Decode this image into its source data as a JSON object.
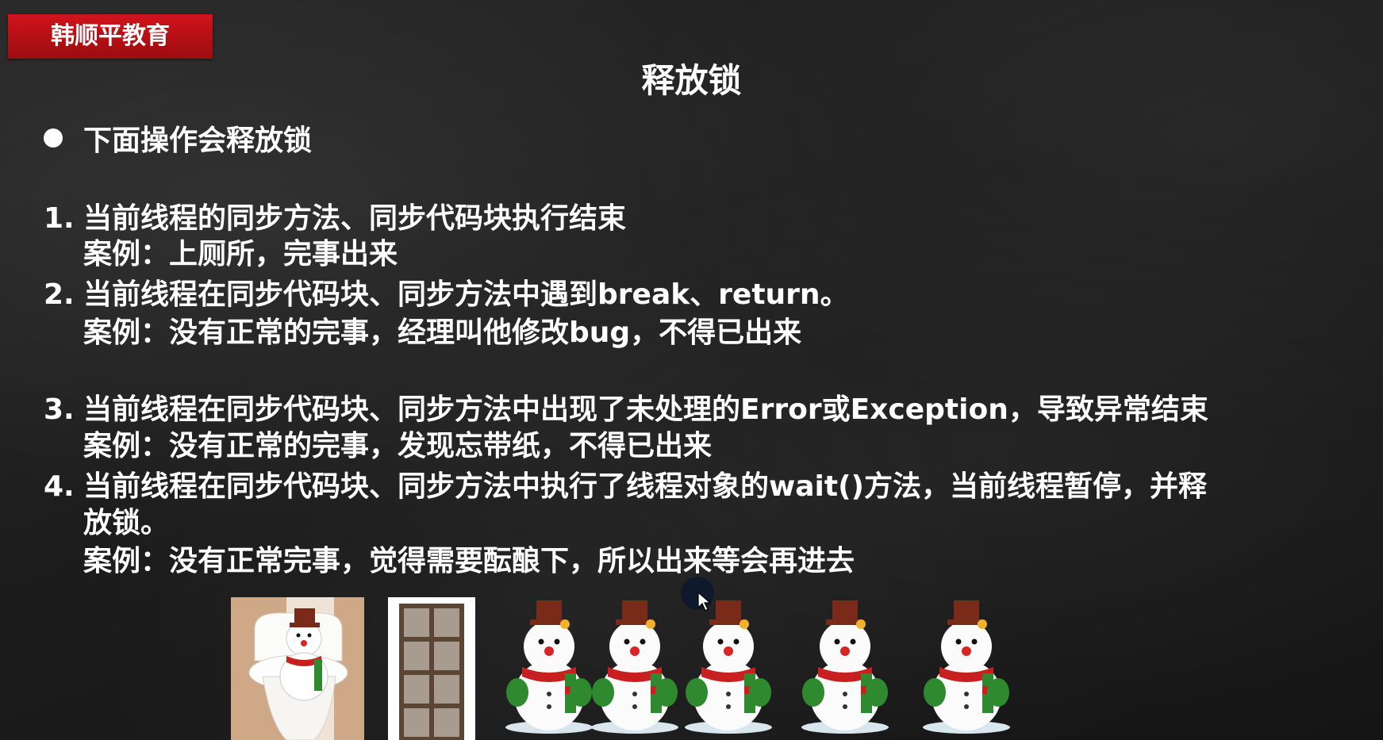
{
  "brand": {
    "label": "韩顺平教育",
    "color": "#c8101a"
  },
  "slide": {
    "title": "释放锁",
    "bullet": "下面操作会释放锁",
    "items": [
      {
        "num": "1.",
        "text": "当前线程的同步方法、同步代码块执行结束",
        "case": "案例：上厕所，完事出来"
      },
      {
        "num": "2.",
        "text": "当前线程在同步代码块、同步方法中遇到break、return。",
        "case": "案例：没有正常的完事，经理叫他修改bug，不得已出来"
      },
      {
        "num": "3.",
        "text": "当前线程在同步代码块、同步方法中出现了未处理的Error或Exception，导致异常结束",
        "case": "案例：没有正常的完事，发现忘带纸，不得已出来"
      },
      {
        "num": "4.",
        "text": "当前线程在同步代码块、同步方法中执行了线程对象的wait()方法，当前线程暂停，并释",
        "text_cont": "放锁。",
        "case": "案例：没有正常完事，觉得需要酝酿下，所以出来等会再进去"
      }
    ]
  },
  "images": {
    "toilet": "toilet-with-snowman-image",
    "door": "wooden-door-image",
    "snowmen_count": 5
  },
  "cursor": {
    "icon": "mouse-pointer-icon"
  }
}
